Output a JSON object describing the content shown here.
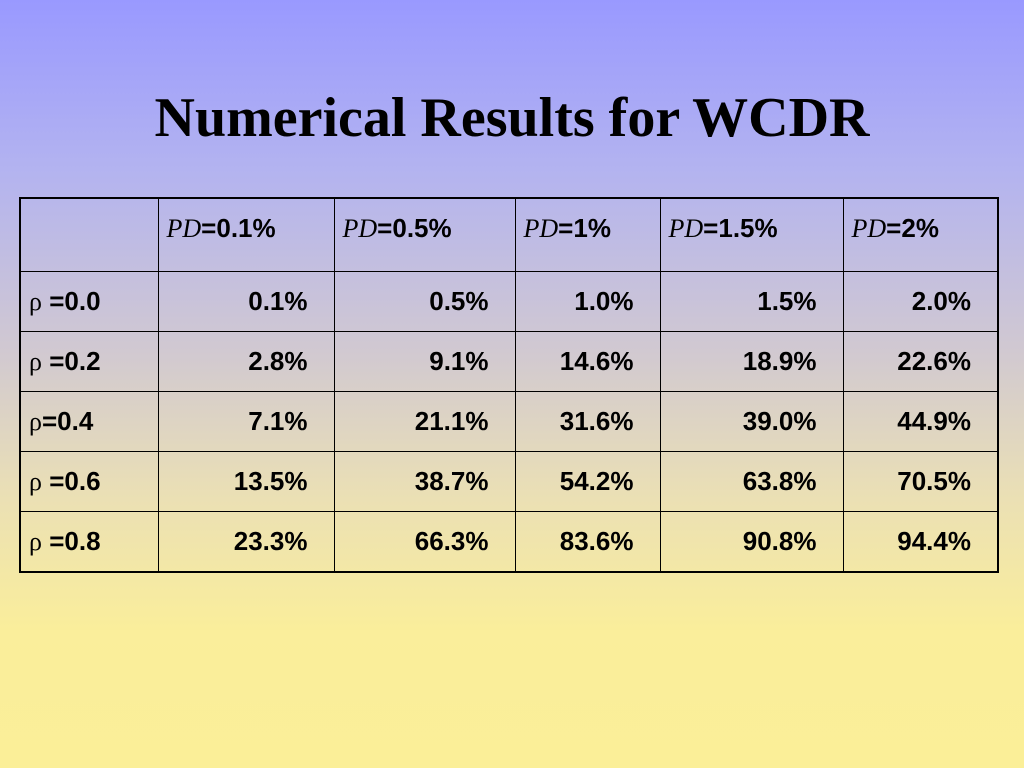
{
  "slide": {
    "title": "Numerical Results for WCDR"
  },
  "table": {
    "corner": "",
    "columns": [
      {
        "var": "PD",
        "value": "=0.1%"
      },
      {
        "var": "PD",
        "value": "=0.5%"
      },
      {
        "var": "PD",
        "value": "=1%"
      },
      {
        "var": "PD",
        "value": "=1.5%"
      },
      {
        "var": "PD",
        "value": "=2%"
      }
    ],
    "rows": [
      {
        "symbol": "ρ",
        "label": " =0.0",
        "values": [
          "0.1%",
          "0.5%",
          "1.0%",
          "1.5%",
          "2.0%"
        ]
      },
      {
        "symbol": "ρ",
        "label": " =0.2",
        "values": [
          "2.8%",
          "9.1%",
          "14.6%",
          "18.9%",
          "22.6%"
        ]
      },
      {
        "symbol": "ρ",
        "label": "=0.4",
        "values": [
          "7.1%",
          "21.1%",
          "31.6%",
          "39.0%",
          "44.9%"
        ]
      },
      {
        "symbol": "ρ",
        "label": " =0.6",
        "values": [
          "13.5%",
          "38.7%",
          "54.2%",
          "63.8%",
          "70.5%"
        ]
      },
      {
        "symbol": "ρ",
        "label": " =0.8",
        "values": [
          "23.3%",
          "66.3%",
          "83.6%",
          "90.8%",
          "94.4%"
        ]
      }
    ]
  }
}
